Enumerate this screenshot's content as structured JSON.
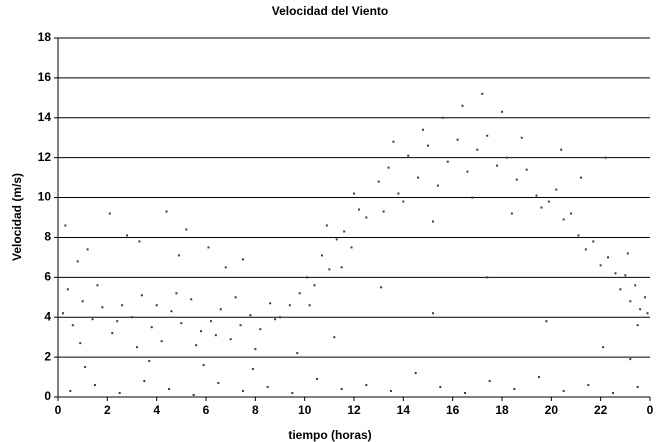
{
  "chart_data": {
    "type": "scatter",
    "title": "Velocidad del Viento",
    "xlabel": "tiempo (horas)",
    "ylabel": "Velocidad (m/s)",
    "xlim": [
      0,
      24
    ],
    "xticks": [
      0,
      2,
      4,
      6,
      8,
      10,
      12,
      14,
      16,
      18,
      20,
      22,
      {
        "value": 24,
        "label": "0"
      }
    ],
    "ylim": [
      0,
      18
    ],
    "yticks": [
      0,
      2,
      4,
      6,
      8,
      10,
      12,
      14,
      16,
      18
    ],
    "grid": true,
    "color": "#3a3a3a",
    "x": [
      0.2,
      0.6,
      1.0,
      1.4,
      1.8,
      2.2,
      2.6,
      3.0,
      3.4,
      3.8,
      4.2,
      4.6,
      5.0,
      5.4,
      5.8,
      6.2,
      6.6,
      7.0,
      7.4,
      7.8,
      8.2,
      8.6,
      9.0,
      9.4,
      0.4,
      0.9,
      1.6,
      2.4,
      3.2,
      4.0,
      4.8,
      5.6,
      6.4,
      7.2,
      8.0,
      8.8,
      0.3,
      1.2,
      2.1,
      3.3,
      4.4,
      5.2,
      6.1,
      7.5,
      0.8,
      2.8,
      4.9,
      6.8,
      0.5,
      1.5,
      2.5,
      3.5,
      4.5,
      5.5,
      6.5,
      7.5,
      8.5,
      9.5,
      10.5,
      11.5,
      12.5,
      13.5,
      14.5,
      15.5,
      16.5,
      17.5,
      18.5,
      19.5,
      20.5,
      21.5,
      22.5,
      23.5,
      1.1,
      3.7,
      5.9,
      7.9,
      9.7,
      11.2,
      13.1,
      15.2,
      17.4,
      19.8,
      22.1,
      23.2,
      9.8,
      10.1,
      10.4,
      10.7,
      11.0,
      11.3,
      11.6,
      11.9,
      12.2,
      12.5,
      10.2,
      10.9,
      11.5,
      12.0,
      13.0,
      13.4,
      13.8,
      14.2,
      14.6,
      15.0,
      15.4,
      15.8,
      16.2,
      16.6,
      17.0,
      17.4,
      17.8,
      18.2,
      18.6,
      19.0,
      19.4,
      13.2,
      14.0,
      14.8,
      15.6,
      16.4,
      17.2,
      18.0,
      18.8,
      19.6,
      13.6,
      15.2,
      16.8,
      18.4,
      19.9,
      20.2,
      20.5,
      20.8,
      21.1,
      21.4,
      21.7,
      22.0,
      22.3,
      22.6,
      20.4,
      21.2,
      22.2,
      22.8,
      23.0,
      23.2,
      23.4,
      23.6,
      23.8,
      23.9,
      23.1,
      23.5
    ],
    "y": [
      4.2,
      3.6,
      4.8,
      3.9,
      4.5,
      3.2,
      4.6,
      4.0,
      5.1,
      3.5,
      2.8,
      4.3,
      3.7,
      4.9,
      3.3,
      3.8,
      4.4,
      2.9,
      3.6,
      4.1,
      3.4,
      4.7,
      4.0,
      4.6,
      5.4,
      2.7,
      5.6,
      3.8,
      2.5,
      4.6,
      5.2,
      2.6,
      3.1,
      5.0,
      2.4,
      3.9,
      8.6,
      7.4,
      9.2,
      7.8,
      9.3,
      8.4,
      7.5,
      6.9,
      6.8,
      8.1,
      7.1,
      6.5,
      0.3,
      0.6,
      0.2,
      0.8,
      0.4,
      0.1,
      0.7,
      0.3,
      0.5,
      0.2,
      0.9,
      0.4,
      0.6,
      0.3,
      1.2,
      0.5,
      0.2,
      0.8,
      0.4,
      1.0,
      0.3,
      0.6,
      0.2,
      0.5,
      1.5,
      1.8,
      1.6,
      1.4,
      2.2,
      3.0,
      5.5,
      4.2,
      6.0,
      3.8,
      2.5,
      1.9,
      5.2,
      6.0,
      5.6,
      7.1,
      6.4,
      7.9,
      8.3,
      7.5,
      9.4,
      9.0,
      4.6,
      8.6,
      6.5,
      10.2,
      10.8,
      11.5,
      10.2,
      12.1,
      11.0,
      12.6,
      10.6,
      11.8,
      12.9,
      11.3,
      12.4,
      13.1,
      11.6,
      12.0,
      10.9,
      11.4,
      10.1,
      9.3,
      9.8,
      13.4,
      14.0,
      14.6,
      15.2,
      14.3,
      13.0,
      9.5,
      12.8,
      8.8,
      10.0,
      9.2,
      9.8,
      10.4,
      8.9,
      9.2,
      8.1,
      7.4,
      7.8,
      6.6,
      7.0,
      6.2,
      12.4,
      11.0,
      12.0,
      5.4,
      6.1,
      4.8,
      5.6,
      4.4,
      5.0,
      4.2,
      7.2,
      3.6
    ]
  }
}
